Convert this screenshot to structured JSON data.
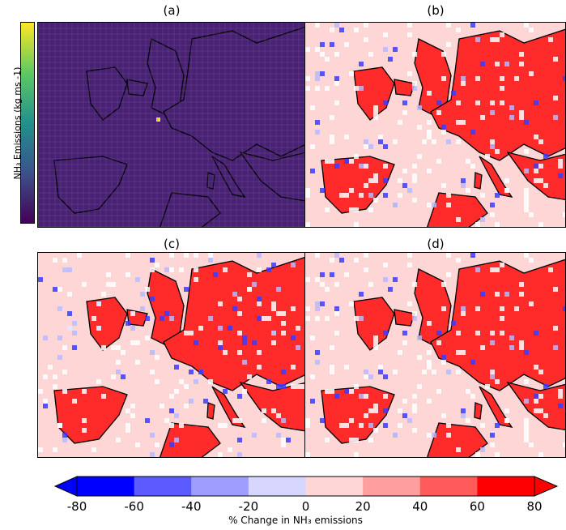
{
  "panels": [
    {
      "title": "(a)",
      "type": "absolute"
    },
    {
      "title": "(b)",
      "type": "change"
    },
    {
      "title": "(c)",
      "type": "change"
    },
    {
      "title": "(d)",
      "type": "change"
    }
  ],
  "top_colorbar": {
    "label": "NH₃ Emissions (kg ms -1)",
    "colormap": "viridis"
  },
  "bottom_colorbar": {
    "ticks": [
      "-80",
      "-60",
      "-40",
      "-20",
      "0",
      "20",
      "40",
      "60",
      "80"
    ],
    "label": "% Change in NH₃ emissions",
    "colors": [
      "#0000ff",
      "#5b5bff",
      "#9e9eff",
      "#d6d6ff",
      "#ffd6d6",
      "#ff9e9e",
      "#ff5b5b",
      "#ff0000"
    ],
    "extend": "both"
  },
  "colors": {
    "ocean_change": "#ffd6d6",
    "land_change": "#ff2a2a",
    "absolute_background": "#482173",
    "coastline": "#000000"
  }
}
